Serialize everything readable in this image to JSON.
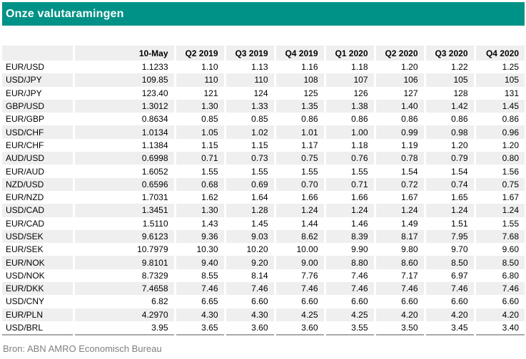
{
  "title": "Onze valutaramingen",
  "source": "Bron: ABN AMRO Economisch Bureau",
  "colors": {
    "accent": "#009286",
    "title_text": "#FFFFFF",
    "row_stripe": "#EFEFEF",
    "table_bottom_border": "#A9A9A9",
    "source_text": "#808080",
    "body_text": "#000000"
  },
  "chart_data": {
    "type": "table",
    "title": "Onze valutaramingen",
    "col_headers": [
      "",
      "10-May",
      "Q2 2019",
      "Q3 2019",
      "Q4 2019",
      "Q1 2020",
      "Q2 2020",
      "Q3 2020",
      "Q4 2020"
    ],
    "rows": [
      {
        "pair": "EUR/USD",
        "values": [
          "1.1233",
          "1.10",
          "1.13",
          "1.16",
          "1.18",
          "1.20",
          "1.22",
          "1.25"
        ]
      },
      {
        "pair": "USD/JPY",
        "values": [
          "109.85",
          "110",
          "110",
          "108",
          "107",
          "106",
          "105",
          "105"
        ]
      },
      {
        "pair": "EUR/JPY",
        "values": [
          "123.40",
          "121",
          "124",
          "125",
          "126",
          "127",
          "128",
          "131"
        ]
      },
      {
        "pair": "GBP/USD",
        "values": [
          "1.3012",
          "1.30",
          "1.33",
          "1.35",
          "1.38",
          "1.40",
          "1.42",
          "1.45"
        ]
      },
      {
        "pair": "EUR/GBP",
        "values": [
          "0.8634",
          "0.85",
          "0.85",
          "0.86",
          "0.86",
          "0.86",
          "0.86",
          "0.86"
        ]
      },
      {
        "pair": "USD/CHF",
        "values": [
          "1.0134",
          "1.05",
          "1.02",
          "1.01",
          "1.00",
          "0.99",
          "0.98",
          "0.96"
        ]
      },
      {
        "pair": "EUR/CHF",
        "values": [
          "1.1384",
          "1.15",
          "1.15",
          "1.17",
          "1.18",
          "1.19",
          "1.20",
          "1.20"
        ]
      },
      {
        "pair": "AUD/USD",
        "values": [
          "0.6998",
          "0.71",
          "0.73",
          "0.75",
          "0.76",
          "0.78",
          "0.79",
          "0.80"
        ]
      },
      {
        "pair": "EUR/AUD",
        "values": [
          "1.6052",
          "1.55",
          "1.55",
          "1.55",
          "1.55",
          "1.54",
          "1.54",
          "1.56"
        ]
      },
      {
        "pair": "NZD/USD",
        "values": [
          "0.6596",
          "0.68",
          "0.69",
          "0.70",
          "0.71",
          "0.72",
          "0.74",
          "0.75"
        ]
      },
      {
        "pair": "EUR/NZD",
        "values": [
          "1.7031",
          "1.62",
          "1.64",
          "1.66",
          "1.66",
          "1.67",
          "1.65",
          "1.67"
        ]
      },
      {
        "pair": "USD/CAD",
        "values": [
          "1.3451",
          "1.30",
          "1.28",
          "1.24",
          "1.24",
          "1.24",
          "1.24",
          "1.24"
        ]
      },
      {
        "pair": "EUR/CAD",
        "values": [
          "1.5110",
          "1.43",
          "1.45",
          "1.44",
          "1.46",
          "1.49",
          "1.51",
          "1.55"
        ]
      },
      {
        "pair": "USD/SEK",
        "values": [
          "9.6123",
          "9.36",
          "9.03",
          "8.62",
          "8.39",
          "8.17",
          "7.95",
          "7.68"
        ]
      },
      {
        "pair": "EUR/SEK",
        "values": [
          "10.7979",
          "10.30",
          "10.20",
          "10.00",
          "9.90",
          "9.80",
          "9.70",
          "9.60"
        ]
      },
      {
        "pair": "EUR/NOK",
        "values": [
          "9.8101",
          "9.40",
          "9.20",
          "9.00",
          "8.80",
          "8.60",
          "8.50",
          "8.50"
        ]
      },
      {
        "pair": "USD/NOK",
        "values": [
          "8.7329",
          "8.55",
          "8.14",
          "7.76",
          "7.46",
          "7.17",
          "6.97",
          "6.80"
        ]
      },
      {
        "pair": "EUR/DKK",
        "values": [
          "7.4658",
          "7.46",
          "7.46",
          "7.46",
          "7.46",
          "7.46",
          "7.46",
          "7.46"
        ]
      },
      {
        "pair": "USD/CNY",
        "values": [
          "6.82",
          "6.65",
          "6.60",
          "6.60",
          "6.60",
          "6.60",
          "6.60",
          "6.60"
        ]
      },
      {
        "pair": "EUR/PLN",
        "values": [
          "4.2970",
          "4.30",
          "4.30",
          "4.25",
          "4.25",
          "4.20",
          "4.20",
          "4.20"
        ]
      },
      {
        "pair": "USD/BRL",
        "values": [
          "3.95",
          "3.65",
          "3.60",
          "3.60",
          "3.55",
          "3.50",
          "3.45",
          "3.40"
        ]
      }
    ]
  }
}
